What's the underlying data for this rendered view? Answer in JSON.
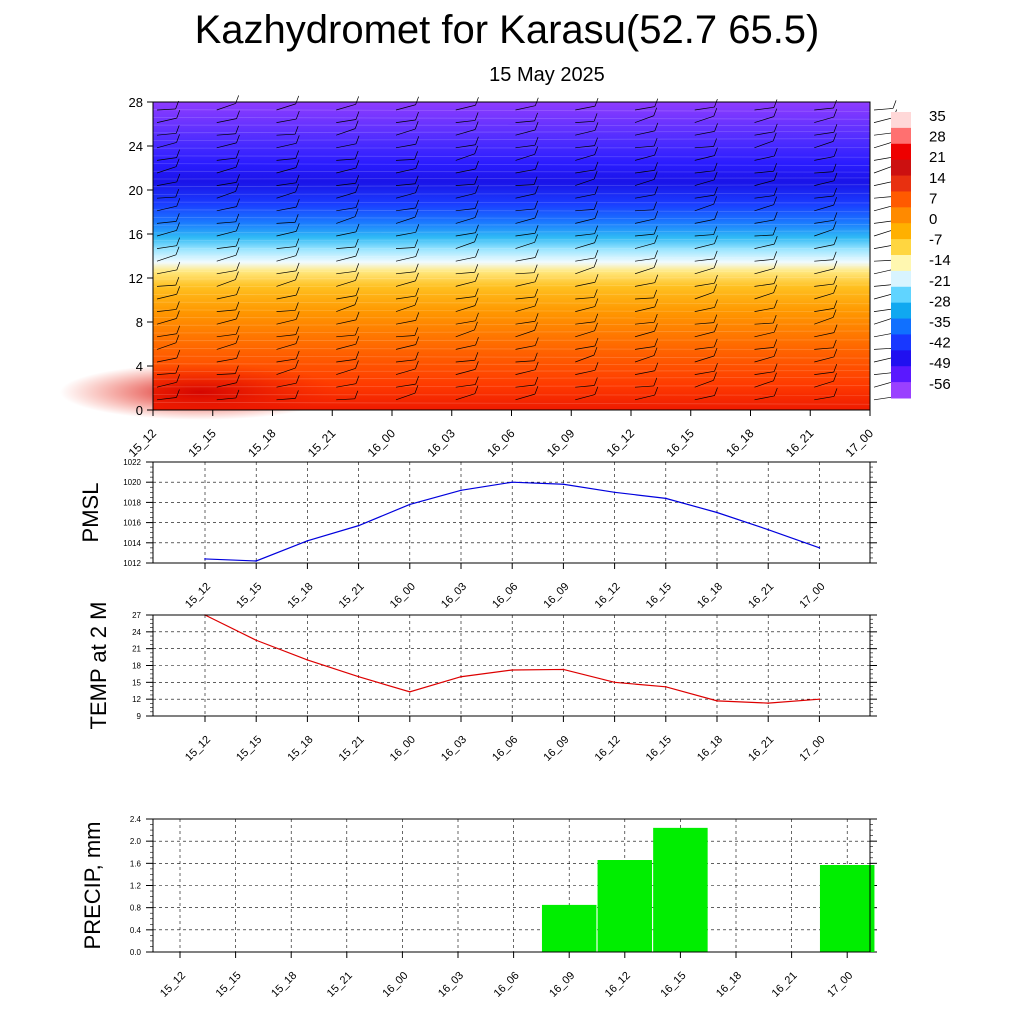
{
  "header": {
    "title": "Kazhydromet for Karasu(52.7 65.5)",
    "subtitle": "15 May 2025"
  },
  "colors": {
    "pmsl_line": "#0000dd",
    "temp_line": "#dd0000",
    "precip_bar": "#00ee00",
    "colorbar": [
      "#ffd8d8",
      "#ff7070",
      "#ee0000",
      "#cc1010",
      "#e83010",
      "#ff5a00",
      "#ff8a00",
      "#ffb000",
      "#ffd640",
      "#fff7b0",
      "#d8f4ff",
      "#60d4ff",
      "#10a8f0",
      "#1070ff",
      "#1838ff",
      "#2010f0",
      "#5a18ff",
      "#9a40ff"
    ]
  },
  "chart_data": [
    {
      "type": "heatmap",
      "title": "",
      "xlabel": "",
      "ylabel": "",
      "categories": [
        "15_12",
        "15_15",
        "15_18",
        "15_21",
        "16_00",
        "16_03",
        "16_06",
        "16_09",
        "16_12",
        "16_15",
        "16_18",
        "16_21",
        "17_00"
      ],
      "y_ticks": [
        0,
        4,
        8,
        12,
        16,
        20,
        24,
        28
      ],
      "ylim": [
        0,
        28
      ],
      "colorbar_labels": [
        35,
        28,
        21,
        14,
        7,
        0,
        -7,
        -14,
        -21,
        -28,
        -35,
        -42,
        -49,
        -56
      ],
      "wind_barbs": true
    },
    {
      "type": "line",
      "ylabel": "PMSL",
      "categories": [
        "15_12",
        "15_15",
        "15_18",
        "15_21",
        "16_00",
        "16_03",
        "16_06",
        "16_09",
        "16_12",
        "16_15",
        "16_18",
        "16_21",
        "17_00"
      ],
      "values": [
        1012.4,
        1012.2,
        1014.2,
        1015.7,
        1017.8,
        1019.2,
        1020.0,
        1019.8,
        1019.0,
        1018.4,
        1017.0,
        1015.3,
        1013.5
      ],
      "ylim": [
        1012,
        1022
      ],
      "y_ticks": [
        1012,
        1014,
        1016,
        1018,
        1020,
        1022
      ],
      "grid": true
    },
    {
      "type": "line",
      "ylabel": "TEMP at 2 M",
      "categories": [
        "15_12",
        "15_15",
        "15_18",
        "15_21",
        "16_00",
        "16_03",
        "16_06",
        "16_09",
        "16_12",
        "16_15",
        "16_18",
        "16_21",
        "17_00"
      ],
      "values": [
        27.0,
        22.5,
        19.0,
        16.0,
        13.3,
        16.0,
        17.2,
        17.3,
        15.0,
        14.2,
        11.7,
        11.3,
        12.0
      ],
      "ylim": [
        9,
        27
      ],
      "y_ticks": [
        9,
        12,
        15,
        18,
        21,
        24,
        27
      ],
      "grid": true
    },
    {
      "type": "bar",
      "ylabel": "PRECIP, mm",
      "categories": [
        "15_12",
        "15_15",
        "15_18",
        "15_21",
        "16_00",
        "16_03",
        "16_06",
        "16_09",
        "16_12",
        "16_15",
        "16_18",
        "16_21",
        "17_00"
      ],
      "values": [
        0,
        0,
        0,
        0,
        0,
        0,
        0,
        0.85,
        1.66,
        2.24,
        0,
        0,
        1.57
      ],
      "ylim": [
        0,
        2.4
      ],
      "y_ticks": [
        "0.0",
        "0.4",
        "0.8",
        "1.2",
        "1.6",
        "2.0",
        "2.4"
      ],
      "grid": true
    }
  ]
}
